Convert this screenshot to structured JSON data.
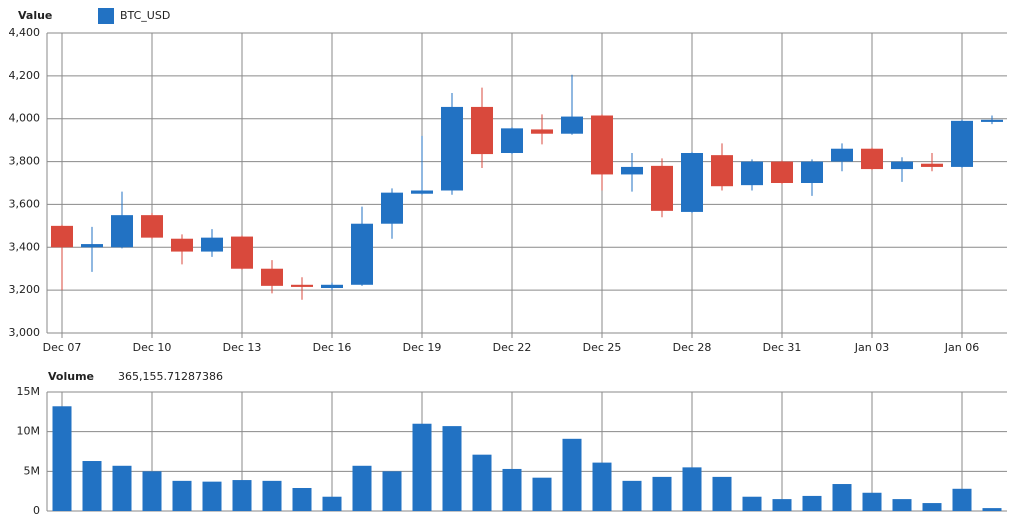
{
  "chart_data": [
    {
      "type": "candlestick",
      "title": "Value",
      "categories": [
        "Dec 07",
        null,
        null,
        "Dec 10",
        null,
        null,
        "Dec 13",
        null,
        null,
        "Dec 16",
        null,
        null,
        "Dec 19",
        null,
        null,
        "Dec 22",
        null,
        null,
        "Dec 25",
        null,
        null,
        "Dec 28",
        null,
        null,
        "Dec 31",
        null,
        null,
        "Jan 03",
        null,
        null,
        "Jan 06",
        null
      ],
      "series": [
        {
          "name": "BTC_USD",
          "color": "#2272c3",
          "down_color": "#d9493c",
          "open": [
            3500,
            3400,
            3400,
            3550,
            3440,
            3380,
            3450,
            3300,
            3225,
            3210,
            3225,
            3510,
            3650,
            3665,
            4055,
            3840,
            3950,
            3930,
            4015,
            3740,
            3780,
            3565,
            3830,
            3690,
            3800,
            3700,
            3800,
            3860,
            3765,
            3790,
            3775,
            3985
          ],
          "high": [
            3505,
            3495,
            3660,
            3560,
            3460,
            3485,
            3455,
            3340,
            3260,
            3235,
            3590,
            3675,
            3920,
            4120,
            4145,
            3960,
            4020,
            4205,
            4020,
            3840,
            3815,
            3845,
            3885,
            3810,
            3805,
            3810,
            3885,
            3865,
            3820,
            3840,
            3995,
            4015
          ],
          "low": [
            3200,
            3285,
            3395,
            3440,
            3320,
            3355,
            3295,
            3185,
            3155,
            3200,
            3220,
            3440,
            3645,
            3645,
            3770,
            3835,
            3880,
            3925,
            3665,
            3660,
            3540,
            3560,
            3665,
            3665,
            3695,
            3640,
            3755,
            3760,
            3705,
            3755,
            3770,
            3975
          ],
          "close": [
            3400,
            3415,
            3550,
            3445,
            3380,
            3445,
            3300,
            3220,
            3215,
            3225,
            3510,
            3655,
            3665,
            4055,
            3835,
            3955,
            3930,
            4010,
            3740,
            3775,
            3570,
            3840,
            3685,
            3800,
            3700,
            3800,
            3860,
            3765,
            3800,
            3775,
            3990,
            3995
          ]
        }
      ],
      "ylim": [
        3000,
        4400
      ],
      "yticks": [
        {
          "value": 3000,
          "label": "3,000"
        },
        {
          "value": 3200,
          "label": "3,200"
        },
        {
          "value": 3400,
          "label": "3,400"
        },
        {
          "value": 3600,
          "label": "3,600"
        },
        {
          "value": 3800,
          "label": "3,800"
        },
        {
          "value": 4000,
          "label": "4,000"
        },
        {
          "value": 4200,
          "label": "4,200"
        },
        {
          "value": 4400,
          "label": "4,400"
        }
      ],
      "grid": true
    },
    {
      "type": "bar",
      "title": "Volume",
      "legend_value": "365,155.71287386",
      "color": "#2272c3",
      "values": [
        13200000,
        6300000,
        5700000,
        5000000,
        3800000,
        3700000,
        3900000,
        3800000,
        2900000,
        1800000,
        5700000,
        5000000,
        11000000,
        10700000,
        7100000,
        5300000,
        4200000,
        9100000,
        6100000,
        3800000,
        4300000,
        5500000,
        4300000,
        1800000,
        1500000,
        1900000,
        3400000,
        2300000,
        1500000,
        1000000,
        2800000,
        365155.71287386
      ],
      "ylim": [
        0,
        15000000
      ],
      "yticks": [
        0,
        {
          "value": 5000000,
          "label": "5M"
        },
        {
          "value": 10000000,
          "label": "10M"
        },
        {
          "value": 15000000,
          "label": "15M"
        }
      ],
      "grid": true
    }
  ]
}
